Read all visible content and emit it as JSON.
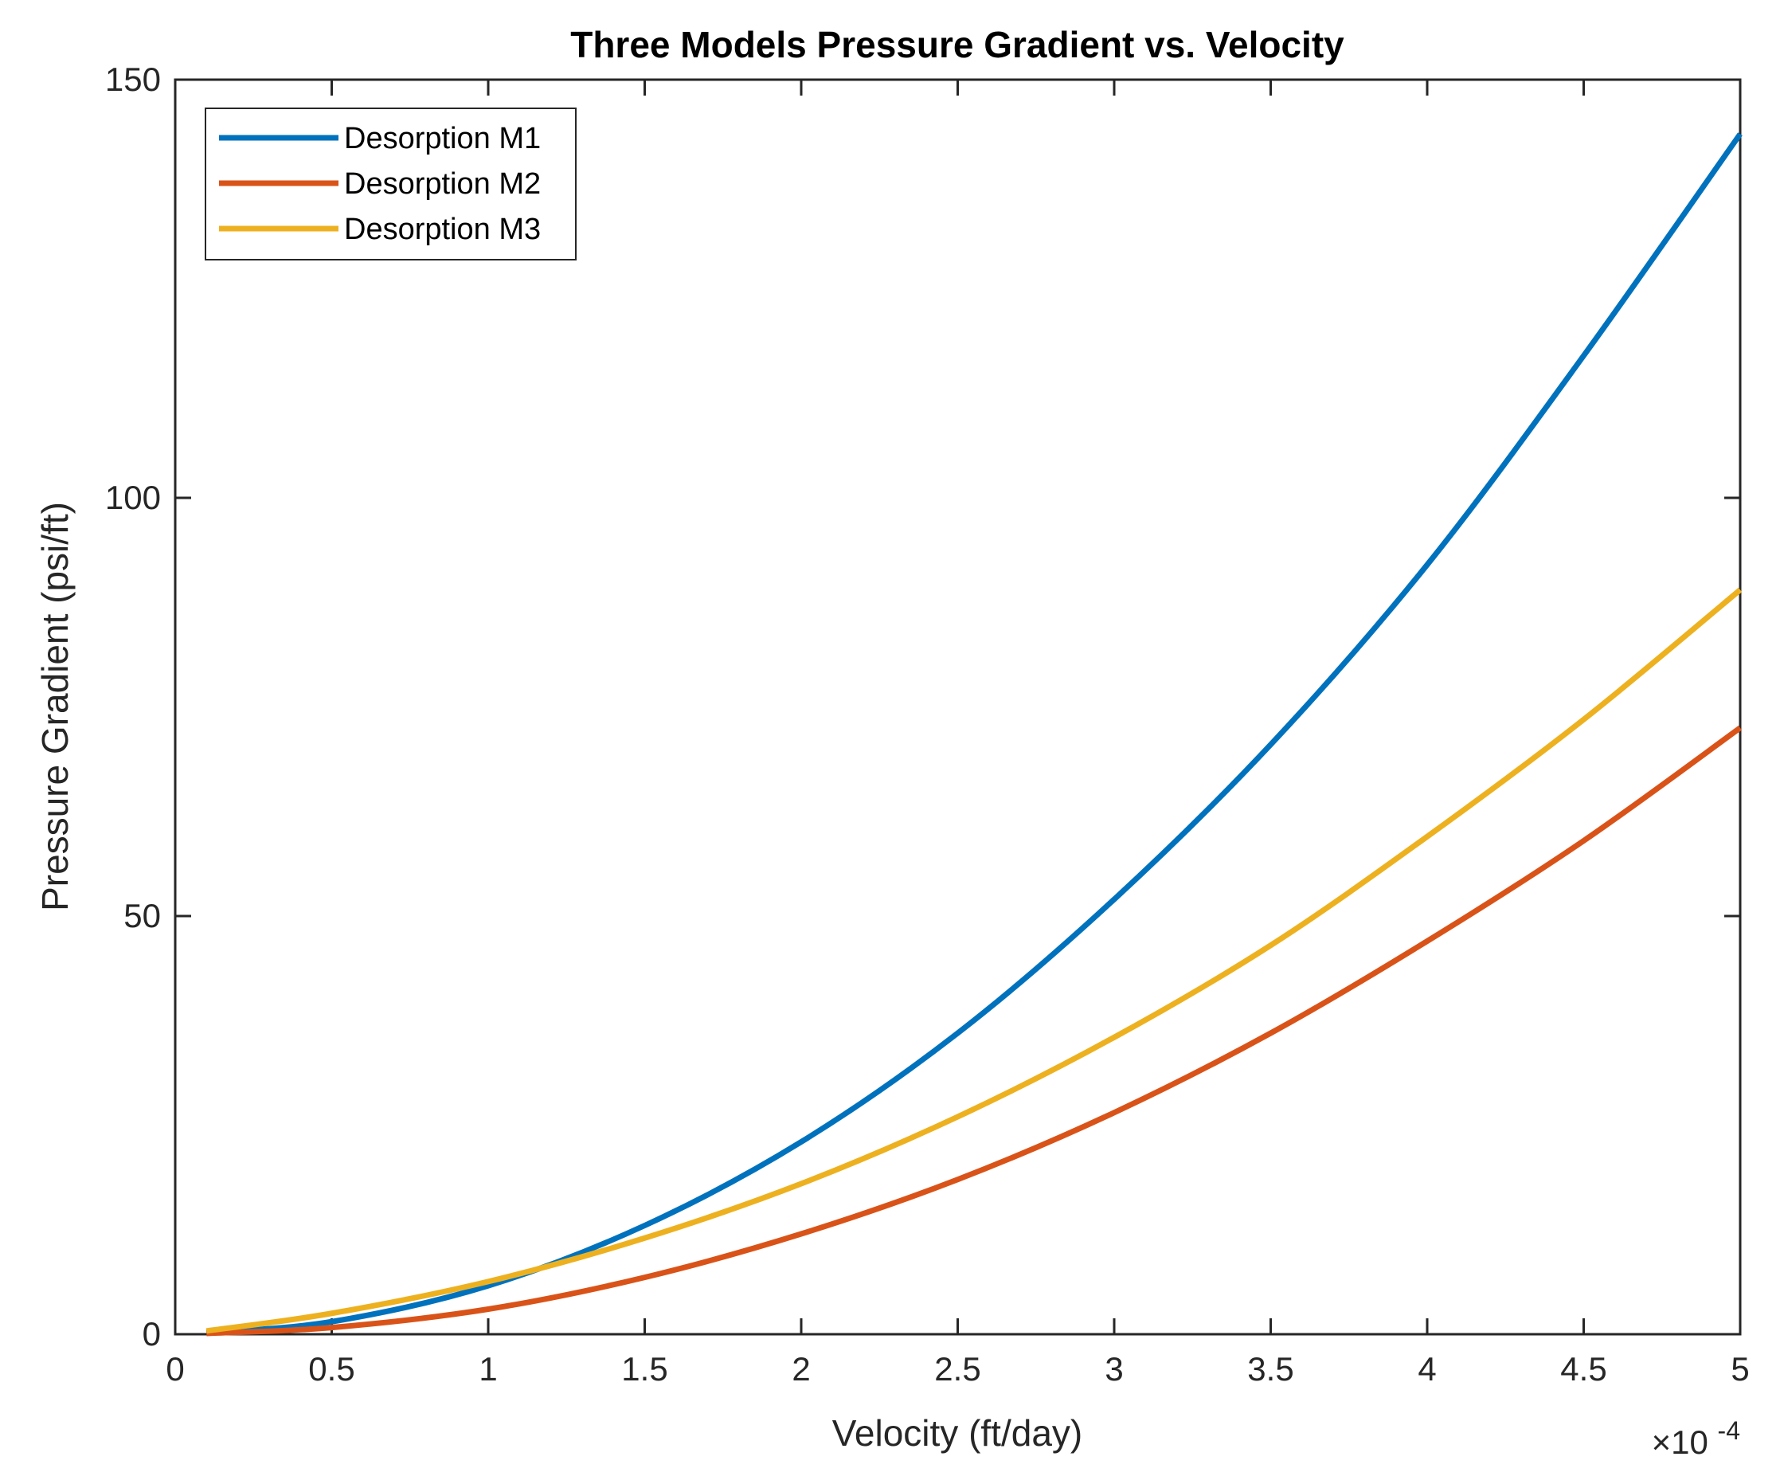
{
  "chart_data": {
    "type": "line",
    "title": "Three Models Pressure Gradient vs. Velocity",
    "xlabel": "Velocity (ft/day)",
    "ylabel": "Pressure Gradient (psi/ft)",
    "x_exponent_label": "×10",
    "x_exponent_power": "-4",
    "xlim": [
      0,
      5
    ],
    "ylim": [
      0,
      150
    ],
    "xticks": [
      0,
      0.5,
      1,
      1.5,
      2,
      2.5,
      3,
      3.5,
      4,
      4.5,
      5
    ],
    "xtick_labels": [
      "0",
      "0.5",
      "1",
      "1.5",
      "2",
      "2.5",
      "3",
      "3.5",
      "4",
      "4.5",
      "5"
    ],
    "yticks": [
      0,
      50,
      100,
      150
    ],
    "ytick_labels": [
      "0",
      "50",
      "100",
      "150"
    ],
    "grid": false,
    "legend_position": "top-left",
    "x": [
      0.1,
      0.5,
      1.0,
      1.5,
      2.0,
      2.5,
      3.0,
      3.5,
      4.0,
      4.5,
      5.0
    ],
    "series": [
      {
        "name": "Desorption M1",
        "color": "#0072BD",
        "values": [
          0.2,
          1.5,
          5.8,
          13.0,
          23.0,
          36.0,
          52.0,
          70.5,
          92.0,
          117.0,
          143.5
        ]
      },
      {
        "name": "Desorption M2",
        "color": "#D95319",
        "values": [
          0.1,
          0.8,
          3.0,
          6.8,
          12.0,
          18.5,
          26.5,
          36.0,
          47.0,
          59.0,
          72.5
        ]
      },
      {
        "name": "Desorption M3",
        "color": "#EDB120",
        "values": [
          0.4,
          2.5,
          6.3,
          11.5,
          18.0,
          26.0,
          35.5,
          46.5,
          59.5,
          73.5,
          89.0
        ]
      }
    ]
  }
}
